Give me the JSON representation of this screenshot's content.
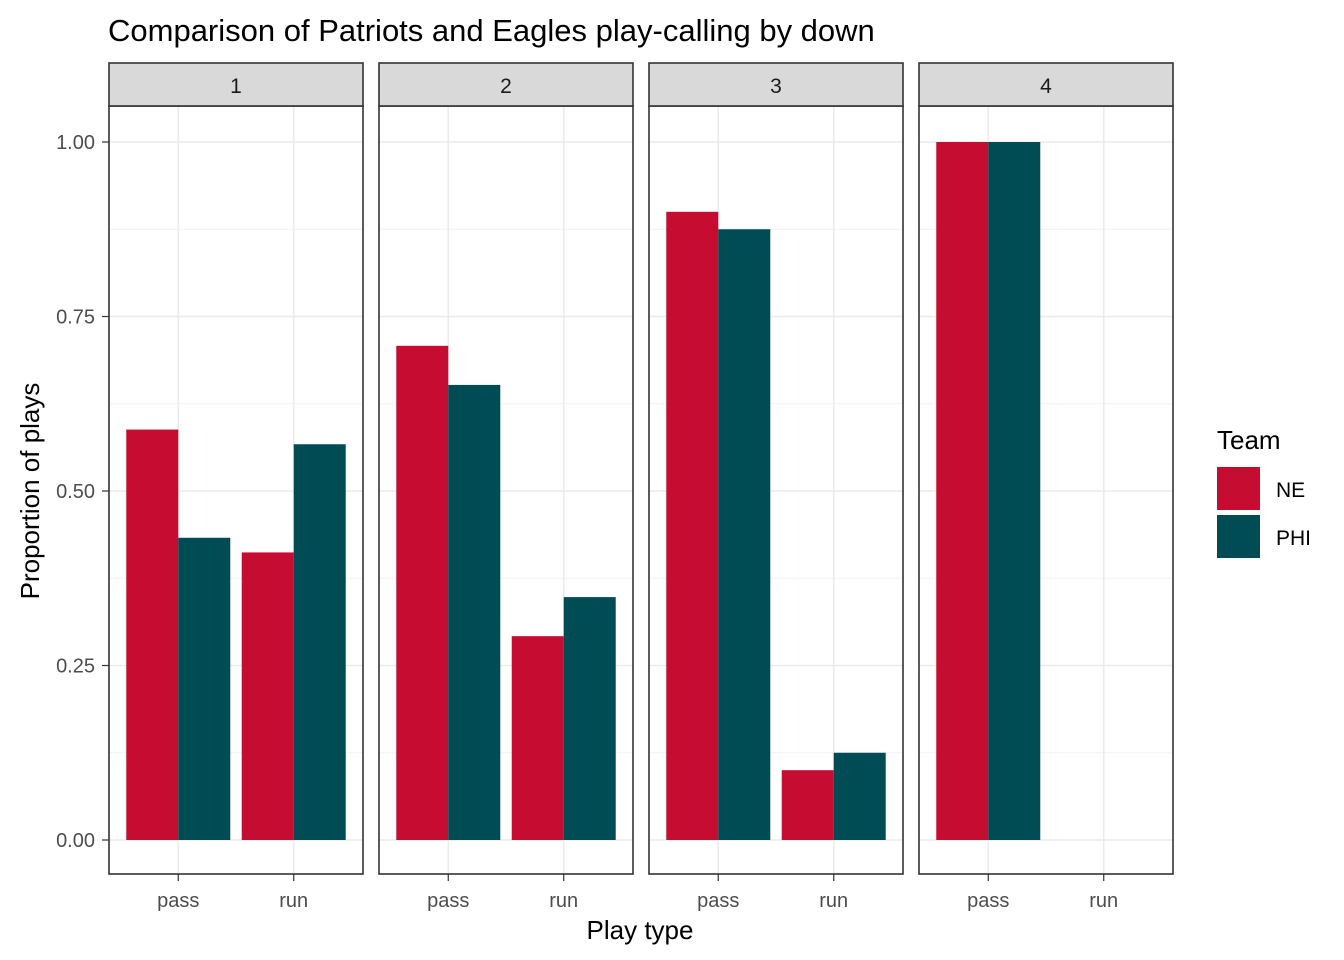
{
  "chart_data": {
    "type": "bar",
    "title": "Comparison of Patriots and Eagles play-calling by down",
    "xlabel": "Play type",
    "ylabel": "Proportion of plays",
    "ylim": [
      0,
      1
    ],
    "yticks": [
      0,
      0.25,
      0.5,
      0.75,
      1
    ],
    "ytick_labels": [
      "0.00",
      "0.25",
      "0.50",
      "0.75",
      "1.00"
    ],
    "categories": [
      "pass",
      "run"
    ],
    "grid": true,
    "legend": {
      "title": "Team",
      "placement": "right",
      "entries": [
        {
          "name": "NE",
          "color": "#C60C30"
        },
        {
          "name": "PHI",
          "color": "#004C54"
        }
      ]
    },
    "facets": [
      {
        "label": "1",
        "series": [
          {
            "name": "NE",
            "values": [
              0.588,
              0.412
            ]
          },
          {
            "name": "PHI",
            "values": [
              0.433,
              0.567
            ]
          }
        ]
      },
      {
        "label": "2",
        "series": [
          {
            "name": "NE",
            "values": [
              0.708,
              0.292
            ]
          },
          {
            "name": "PHI",
            "values": [
              0.652,
              0.348
            ]
          }
        ]
      },
      {
        "label": "3",
        "series": [
          {
            "name": "NE",
            "values": [
              0.9,
              0.1
            ]
          },
          {
            "name": "PHI",
            "values": [
              0.875,
              0.125
            ]
          }
        ]
      },
      {
        "label": "4",
        "series": [
          {
            "name": "NE",
            "values": [
              1.0,
              null
            ]
          },
          {
            "name": "PHI",
            "values": [
              1.0,
              null
            ]
          }
        ]
      }
    ]
  }
}
